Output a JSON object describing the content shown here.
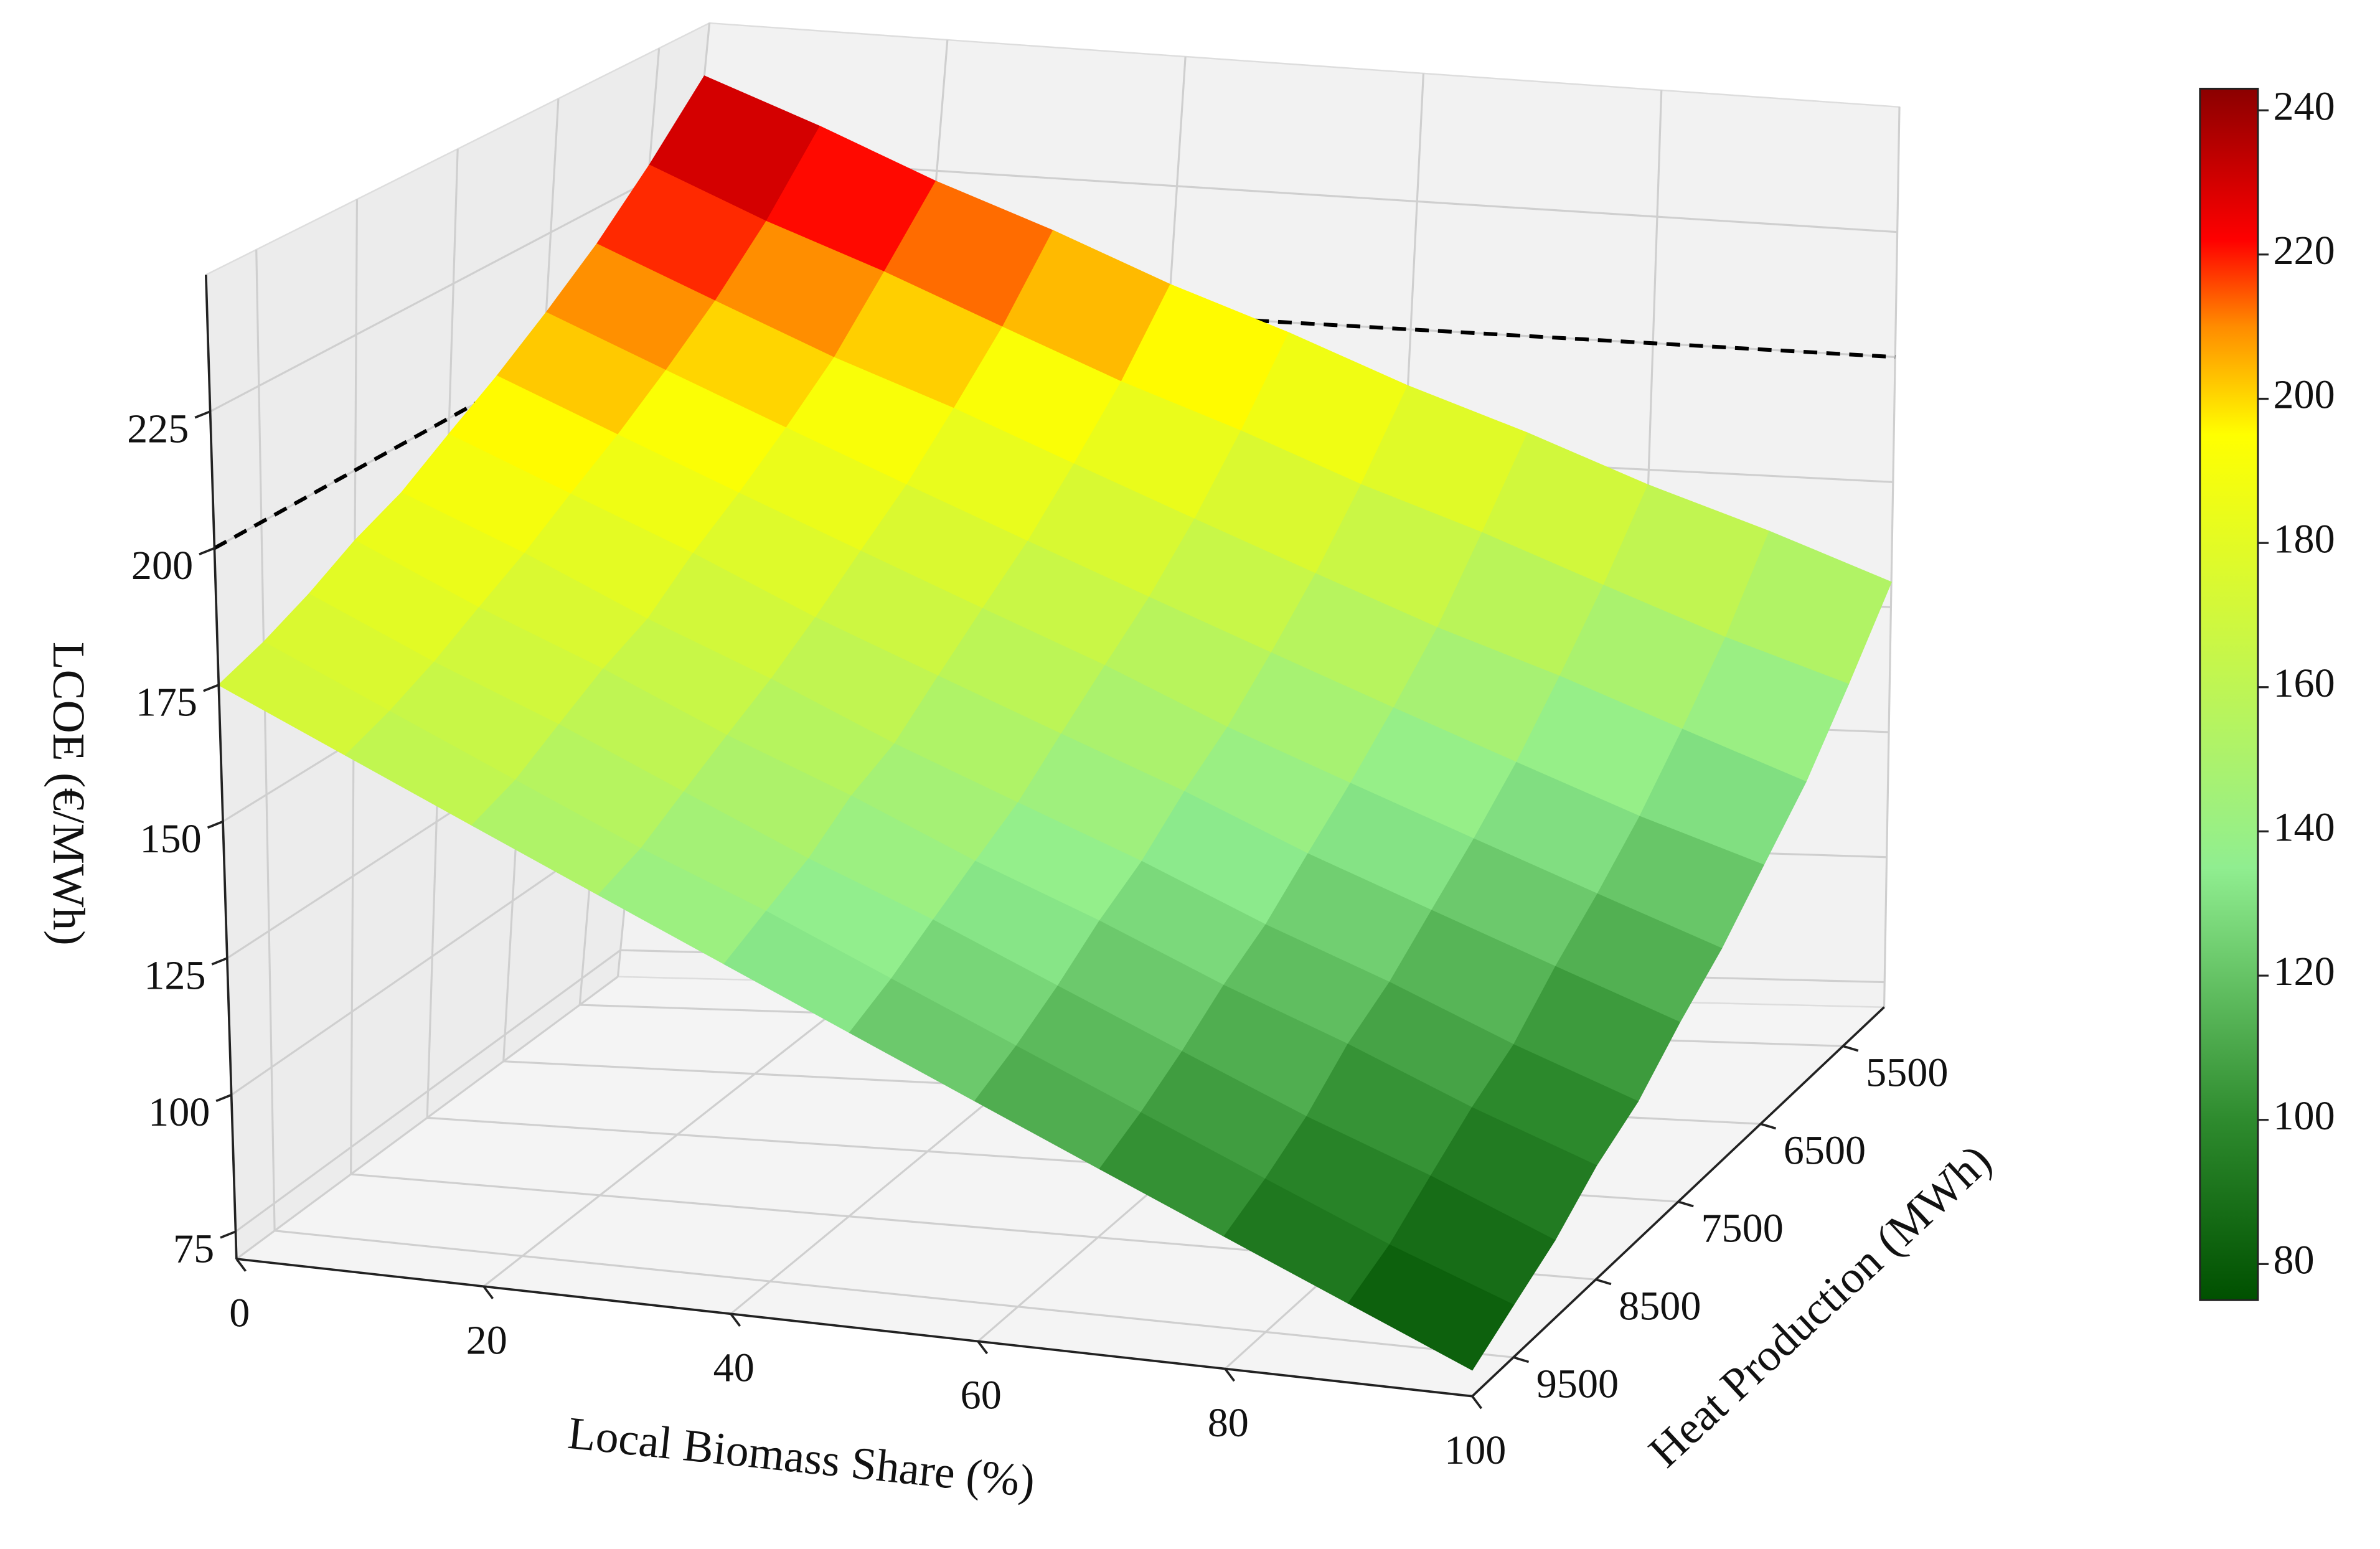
{
  "chart_data": {
    "type": "surface",
    "xlabel": "Local Biomass Share (%)",
    "ylabel": "Heat Production (MWh)",
    "zlabel": "LCOE (€/MWh)",
    "x": [
      0,
      10,
      20,
      30,
      40,
      50,
      60,
      70,
      80,
      90,
      100
    ],
    "y": [
      5000,
      5500,
      6000,
      6500,
      7000,
      7500,
      8000,
      8500,
      9000,
      9500,
      10000
    ],
    "z": [
      [
        240,
        232,
        223,
        215,
        206,
        198,
        189,
        181,
        172,
        164,
        155
      ],
      [
        228,
        219,
        211,
        202,
        193,
        185,
        176,
        168,
        159,
        150,
        142
      ],
      [
        218,
        209,
        200,
        192,
        183,
        174,
        165,
        156,
        148,
        139,
        130
      ],
      [
        210,
        201,
        192,
        183,
        174,
        165,
        156,
        147,
        138,
        129,
        121
      ],
      [
        203,
        194,
        185,
        176,
        167,
        158,
        148,
        139,
        130,
        121,
        112
      ],
      [
        197,
        188,
        179,
        169,
        160,
        151,
        142,
        132,
        123,
        114,
        105
      ],
      [
        191,
        182,
        172,
        163,
        153,
        144,
        135,
        125,
        116,
        106,
        97
      ],
      [
        187,
        177,
        168,
        158,
        149,
        139,
        130,
        120,
        111,
        101,
        92
      ],
      [
        182,
        172,
        163,
        153,
        143,
        134,
        124,
        114,
        104,
        95,
        85
      ],
      [
        178,
        168,
        158,
        148,
        139,
        129,
        119,
        109,
        99,
        89,
        80
      ],
      [
        175,
        165,
        155,
        145,
        135,
        125,
        115,
        105,
        95,
        85,
        75
      ]
    ],
    "xlim": [
      0,
      100
    ],
    "xticks": [
      0,
      20,
      40,
      60,
      80,
      100
    ],
    "ylim": [
      5000,
      10000
    ],
    "yticks": [
      5500,
      6500,
      7500,
      8500,
      9500
    ],
    "zlim": [
      70,
      250
    ],
    "zticks": [
      75,
      100,
      125,
      150,
      175,
      200,
      225
    ],
    "reference_level": 200,
    "grid": true,
    "colorbar": {
      "clim": [
        75,
        243
      ],
      "ticks": [
        80,
        100,
        120,
        140,
        160,
        180,
        200,
        220,
        240
      ],
      "colormap": [
        {
          "value": 75,
          "color": "#005000"
        },
        {
          "value": 100,
          "color": "#2e8b2e"
        },
        {
          "value": 135,
          "color": "#90ee90"
        },
        {
          "value": 195,
          "color": "#ffff00"
        },
        {
          "value": 210,
          "color": "#ff8c00"
        },
        {
          "value": 222,
          "color": "#ff0000"
        },
        {
          "value": 243,
          "color": "#8b0000"
        }
      ]
    }
  }
}
